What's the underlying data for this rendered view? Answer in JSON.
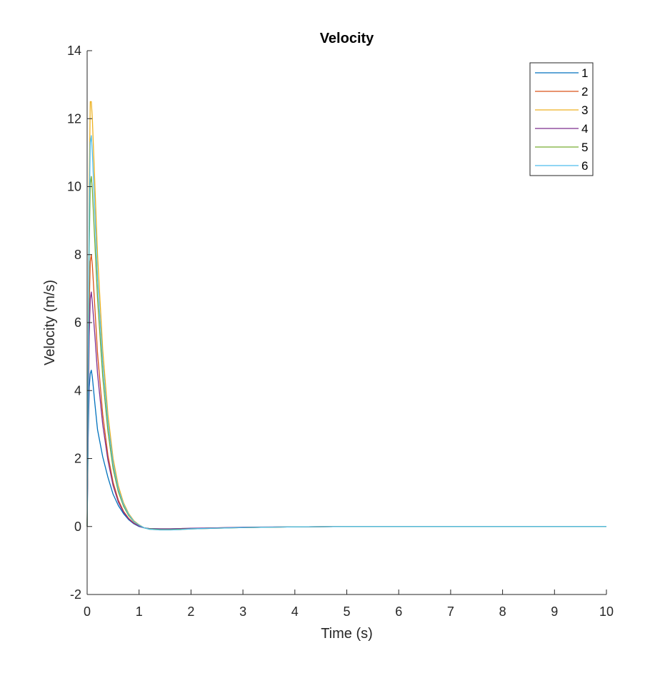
{
  "chart_data": {
    "type": "line",
    "title": "Velocity",
    "xlabel": "Time (s)",
    "ylabel": "Velocity (m/s)",
    "xlim": [
      0,
      10
    ],
    "ylim": [
      -2,
      14
    ],
    "xticks": [
      0,
      1,
      2,
      3,
      4,
      5,
      6,
      7,
      8,
      9,
      10
    ],
    "yticks": [
      -2,
      0,
      2,
      4,
      6,
      8,
      10,
      12,
      14
    ],
    "grid": false,
    "legend_position": "top-right",
    "series": [
      {
        "name": "1",
        "color": "#0072BD",
        "x": [
          0,
          0.02,
          0.04,
          0.06,
          0.08,
          0.1,
          0.15,
          0.2,
          0.3,
          0.4,
          0.5,
          0.6,
          0.7,
          0.8,
          0.9,
          1.0,
          1.1,
          1.2,
          1.4,
          1.6,
          1.8,
          2.0,
          2.5,
          3.0,
          4.0,
          5.0,
          6.0,
          7.0,
          8.0,
          9.0,
          10.0
        ],
        "y": [
          0,
          2.6,
          4.1,
          4.5,
          4.6,
          4.4,
          3.6,
          2.85,
          2.05,
          1.45,
          0.95,
          0.62,
          0.38,
          0.2,
          0.08,
          0.0,
          -0.04,
          -0.06,
          -0.07,
          -0.07,
          -0.06,
          -0.06,
          -0.04,
          -0.03,
          -0.01,
          0.0,
          0.0,
          0.0,
          0.0,
          0.0,
          0.0
        ]
      },
      {
        "name": "2",
        "color": "#D95319",
        "x": [
          0,
          0.02,
          0.04,
          0.06,
          0.08,
          0.1,
          0.15,
          0.2,
          0.3,
          0.4,
          0.5,
          0.6,
          0.7,
          0.8,
          0.9,
          1.0,
          1.1,
          1.2,
          1.4,
          1.6,
          1.8,
          2.0,
          2.5,
          3.0,
          4.0,
          5.0,
          6.0,
          7.0,
          8.0,
          9.0,
          10.0
        ],
        "y": [
          0,
          3.5,
          6.5,
          7.8,
          8.0,
          7.7,
          6.4,
          5.1,
          3.3,
          2.1,
          1.3,
          0.78,
          0.45,
          0.24,
          0.1,
          0.02,
          -0.04,
          -0.07,
          -0.08,
          -0.08,
          -0.07,
          -0.06,
          -0.04,
          -0.03,
          -0.01,
          0.0,
          0.0,
          0.0,
          0.0,
          0.0,
          0.0
        ]
      },
      {
        "name": "3",
        "color": "#EDB120",
        "x": [
          0,
          0.02,
          0.04,
          0.06,
          0.08,
          0.1,
          0.15,
          0.2,
          0.3,
          0.4,
          0.5,
          0.6,
          0.7,
          0.8,
          0.9,
          1.0,
          1.1,
          1.2,
          1.4,
          1.6,
          1.8,
          2.0,
          2.5,
          3.0,
          4.0,
          5.0,
          6.0,
          7.0,
          8.0,
          9.0,
          10.0
        ],
        "y": [
          0,
          5.0,
          10.0,
          12.5,
          12.5,
          12.0,
          10.0,
          8.0,
          5.2,
          3.3,
          2.0,
          1.2,
          0.7,
          0.38,
          0.17,
          0.05,
          -0.04,
          -0.08,
          -0.1,
          -0.1,
          -0.09,
          -0.07,
          -0.05,
          -0.03,
          -0.01,
          0.0,
          0.0,
          0.0,
          0.0,
          0.0,
          0.0
        ]
      },
      {
        "name": "4",
        "color": "#7E2F8E",
        "x": [
          0,
          0.02,
          0.04,
          0.06,
          0.08,
          0.1,
          0.15,
          0.2,
          0.3,
          0.4,
          0.5,
          0.6,
          0.7,
          0.8,
          0.9,
          1.0,
          1.1,
          1.2,
          1.4,
          1.6,
          1.8,
          2.0,
          2.5,
          3.0,
          4.0,
          5.0,
          6.0,
          7.0,
          8.0,
          9.0,
          10.0
        ],
        "y": [
          0,
          3.0,
          5.6,
          6.7,
          6.9,
          6.6,
          5.6,
          4.5,
          3.0,
          1.95,
          1.2,
          0.72,
          0.42,
          0.22,
          0.09,
          0.01,
          -0.04,
          -0.06,
          -0.07,
          -0.07,
          -0.06,
          -0.05,
          -0.04,
          -0.02,
          -0.01,
          0.0,
          0.0,
          0.0,
          0.0,
          0.0,
          0.0
        ]
      },
      {
        "name": "5",
        "color": "#77AC30",
        "x": [
          0,
          0.02,
          0.04,
          0.06,
          0.08,
          0.1,
          0.15,
          0.2,
          0.3,
          0.4,
          0.5,
          0.6,
          0.7,
          0.8,
          0.9,
          1.0,
          1.1,
          1.2,
          1.4,
          1.6,
          1.8,
          2.0,
          2.5,
          3.0,
          4.0,
          5.0,
          6.0,
          7.0,
          8.0,
          9.0,
          10.0
        ],
        "y": [
          0,
          4.2,
          8.2,
          10.1,
          10.3,
          9.9,
          8.3,
          6.7,
          4.4,
          2.8,
          1.7,
          1.02,
          0.6,
          0.32,
          0.14,
          0.04,
          -0.04,
          -0.07,
          -0.09,
          -0.09,
          -0.08,
          -0.07,
          -0.05,
          -0.03,
          -0.01,
          0.0,
          0.0,
          0.0,
          0.0,
          0.0,
          0.0
        ]
      },
      {
        "name": "6",
        "color": "#4DBEEE",
        "x": [
          0,
          0.02,
          0.04,
          0.06,
          0.08,
          0.1,
          0.15,
          0.2,
          0.3,
          0.4,
          0.5,
          0.6,
          0.7,
          0.8,
          0.9,
          1.0,
          1.1,
          1.2,
          1.4,
          1.6,
          1.8,
          2.0,
          2.5,
          3.0,
          4.0,
          5.0,
          6.0,
          7.0,
          8.0,
          9.0,
          10.0
        ],
        "y": [
          0,
          4.7,
          9.2,
          11.3,
          11.5,
          11.0,
          9.2,
          7.3,
          4.8,
          3.05,
          1.85,
          1.1,
          0.65,
          0.35,
          0.15,
          0.04,
          -0.04,
          -0.08,
          -0.1,
          -0.1,
          -0.09,
          -0.07,
          -0.05,
          -0.03,
          -0.01,
          0.0,
          0.0,
          0.0,
          0.0,
          0.0,
          0.0
        ]
      }
    ]
  }
}
